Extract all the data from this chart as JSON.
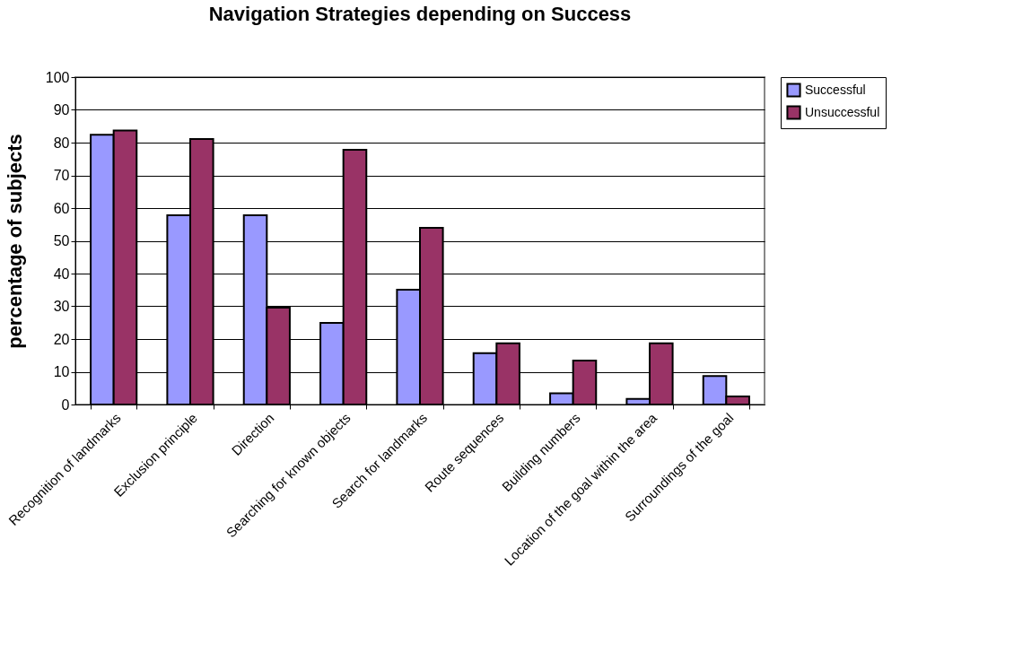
{
  "chart_data": {
    "type": "bar",
    "title": "Navigation Strategies depending on Success",
    "ylabel": "percentage of subjects",
    "categories": [
      "Recognition of landmarks",
      "Exclusion principle",
      "Direction",
      "Searching for known objects",
      "Search for landmarks",
      "Route sequences",
      "Building numbers",
      "Location of the goal within the area",
      "Surroundings of the goal"
    ],
    "series": [
      {
        "name": "Successful",
        "color": "#9999ff",
        "values": [
          82.4,
          57.8,
          57.8,
          24.9,
          35.1,
          15.7,
          3.4,
          1.7,
          8.7
        ]
      },
      {
        "name": "Unsuccessful",
        "color": "#993366",
        "values": [
          83.7,
          81.1,
          29.6,
          77.8,
          54.0,
          18.7,
          13.4,
          18.7,
          2.5
        ]
      }
    ],
    "ylim": [
      0,
      100
    ],
    "yticks": [
      0,
      10,
      20,
      30,
      40,
      50,
      60,
      70,
      80,
      90,
      100
    ],
    "grid": "y",
    "legend": "right"
  }
}
